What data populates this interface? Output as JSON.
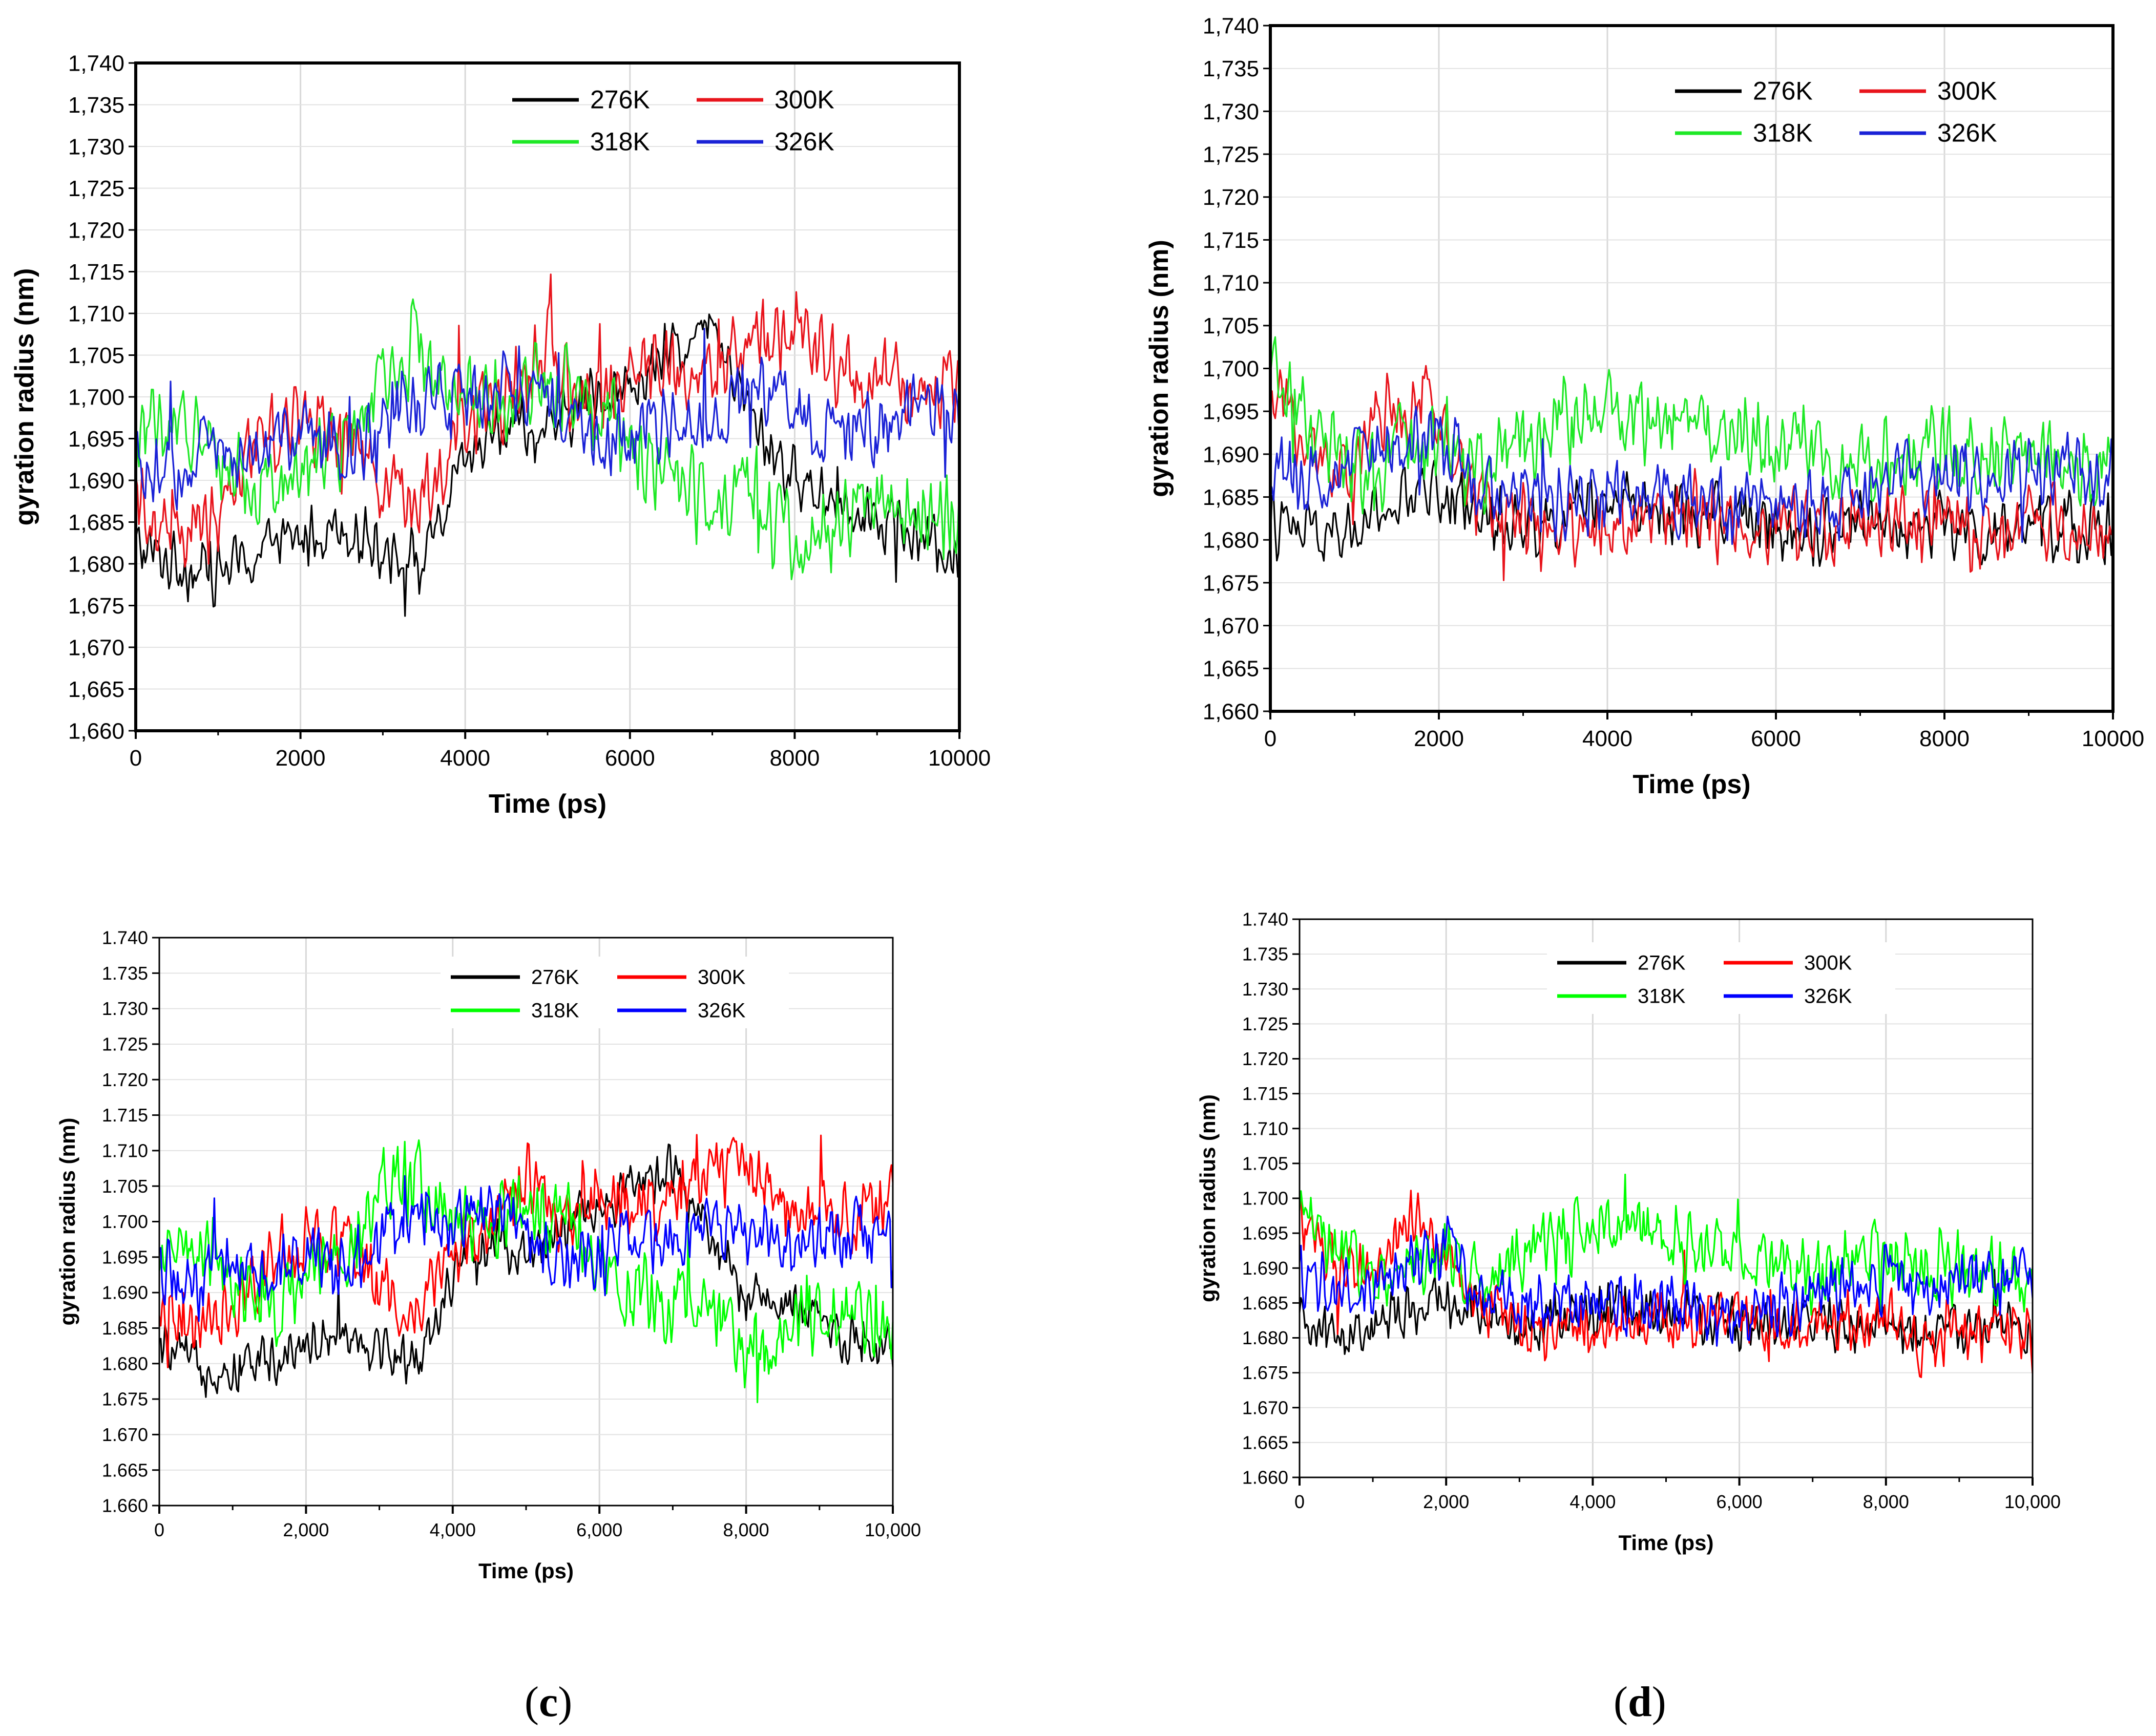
{
  "figure": {
    "panel_labels": [
      "(c)",
      "(d)"
    ],
    "label_letters": [
      "c",
      "d"
    ]
  },
  "chart_data": [
    {
      "type": "line",
      "panel": "a",
      "xlabel": "Time (ps)",
      "ylabel": "gyration radius (nm)",
      "xlim": [
        0,
        10000
      ],
      "ylim": [
        1.66,
        1.74
      ],
      "xticks": [
        "0",
        "2000",
        "4000",
        "6000",
        "8000",
        "10000"
      ],
      "xtick_values": [
        0,
        2000,
        4000,
        6000,
        8000,
        10000
      ],
      "yticks": [
        "1,660",
        "1,665",
        "1,670",
        "1,675",
        "1,680",
        "1,685",
        "1,690",
        "1,695",
        "1,700",
        "1,705",
        "1,710",
        "1,715",
        "1,720",
        "1,725",
        "1,730",
        "1,735",
        "1,740"
      ],
      "grid": true,
      "legend_position": "top-right",
      "legend": [
        {
          "name": "276K",
          "color": "#000000"
        },
        {
          "name": "300K",
          "color": "#e8141c"
        },
        {
          "name": "318K",
          "color": "#1ee826"
        },
        {
          "name": "326K",
          "color": "#1a22d6"
        }
      ],
      "series": [
        {
          "name": "276K",
          "color": "#000000",
          "x": [
            0,
            500,
            1000,
            1500,
            2000,
            2500,
            3000,
            3500,
            4000,
            4500,
            5000,
            5500,
            6000,
            6500,
            7000,
            7500,
            8000,
            8500,
            9000,
            9500,
            10000
          ],
          "y": [
            1.682,
            1.68,
            1.679,
            1.681,
            1.683,
            1.685,
            1.682,
            1.68,
            1.692,
            1.697,
            1.695,
            1.7,
            1.701,
            1.705,
            1.708,
            1.697,
            1.69,
            1.688,
            1.686,
            1.683,
            1.681
          ],
          "noise": 0.0045
        },
        {
          "name": "300K",
          "color": "#e8141c",
          "x": [
            0,
            500,
            1000,
            1500,
            2000,
            2500,
            3000,
            3500,
            4000,
            4500,
            5000,
            5500,
            6000,
            6500,
            7000,
            7500,
            8000,
            8500,
            9000,
            9500,
            10000
          ],
          "y": [
            1.688,
            1.684,
            1.686,
            1.696,
            1.697,
            1.697,
            1.69,
            1.688,
            1.696,
            1.7,
            1.706,
            1.698,
            1.704,
            1.703,
            1.702,
            1.707,
            1.708,
            1.703,
            1.702,
            1.7,
            1.703
          ],
          "noise": 0.006
        },
        {
          "name": "318K",
          "color": "#1ee826",
          "x": [
            0,
            500,
            1000,
            1500,
            2000,
            2500,
            3000,
            3500,
            4000,
            4500,
            5000,
            5500,
            6000,
            6500,
            7000,
            7500,
            8000,
            8500,
            9000,
            9500,
            10000
          ],
          "y": [
            1.696,
            1.697,
            1.692,
            1.688,
            1.692,
            1.694,
            1.704,
            1.706,
            1.7,
            1.699,
            1.702,
            1.7,
            1.694,
            1.69,
            1.688,
            1.689,
            1.682,
            1.684,
            1.688,
            1.686,
            1.686
          ],
          "noise": 0.0065
        },
        {
          "name": "326K",
          "color": "#1a22d6",
          "x": [
            0,
            500,
            1000,
            1500,
            2000,
            2500,
            3000,
            3500,
            4000,
            4500,
            5000,
            5500,
            6000,
            6500,
            7000,
            7500,
            8000,
            8500,
            9000,
            9500,
            10000
          ],
          "y": [
            1.693,
            1.69,
            1.695,
            1.693,
            1.695,
            1.693,
            1.697,
            1.7,
            1.7,
            1.702,
            1.699,
            1.694,
            1.695,
            1.698,
            1.697,
            1.7,
            1.698,
            1.696,
            1.697,
            1.699,
            1.697
          ],
          "noise": 0.0055
        }
      ]
    },
    {
      "type": "line",
      "panel": "b",
      "xlabel": "Time (ps)",
      "ylabel": "gyration radius (nm)",
      "xlim": [
        0,
        10000
      ],
      "ylim": [
        1.66,
        1.74
      ],
      "xticks": [
        "0",
        "2000",
        "4000",
        "6000",
        "8000",
        "10000"
      ],
      "xtick_values": [
        0,
        2000,
        4000,
        6000,
        8000,
        10000
      ],
      "yticks": [
        "1,660",
        "1,665",
        "1,670",
        "1,675",
        "1,680",
        "1,685",
        "1,690",
        "1,695",
        "1,700",
        "1,705",
        "1,710",
        "1,715",
        "1,720",
        "1,725",
        "1,730",
        "1,735",
        "1,740"
      ],
      "grid": true,
      "legend_position": "top-right",
      "legend": [
        {
          "name": "276K",
          "color": "#000000"
        },
        {
          "name": "300K",
          "color": "#e8141c"
        },
        {
          "name": "318K",
          "color": "#1ee826"
        },
        {
          "name": "326K",
          "color": "#1a22d6"
        }
      ],
      "series": [
        {
          "name": "276K",
          "color": "#000000",
          "x": [
            0,
            500,
            1000,
            1500,
            2000,
            2500,
            3000,
            3500,
            4000,
            4500,
            5000,
            5500,
            6000,
            6500,
            7000,
            7500,
            8000,
            8500,
            9000,
            9500,
            10000
          ],
          "y": [
            1.682,
            1.68,
            1.681,
            1.684,
            1.686,
            1.683,
            1.682,
            1.683,
            1.684,
            1.684,
            1.683,
            1.683,
            1.682,
            1.681,
            1.683,
            1.681,
            1.682,
            1.68,
            1.681,
            1.682,
            1.681
          ],
          "noise": 0.0045
        },
        {
          "name": "300K",
          "color": "#e8141c",
          "x": [
            0,
            500,
            1000,
            1500,
            2000,
            2500,
            3000,
            3500,
            4000,
            4500,
            5000,
            5500,
            6000,
            6500,
            7000,
            7500,
            8000,
            8500,
            9000,
            9500,
            10000
          ],
          "y": [
            1.697,
            1.69,
            1.688,
            1.697,
            1.694,
            1.683,
            1.682,
            1.681,
            1.682,
            1.682,
            1.683,
            1.682,
            1.682,
            1.681,
            1.682,
            1.682,
            1.683,
            1.679,
            1.682,
            1.681,
            1.68
          ],
          "noise": 0.0055
        },
        {
          "name": "318K",
          "color": "#1ee826",
          "x": [
            0,
            500,
            1000,
            1500,
            2000,
            2500,
            3000,
            3500,
            4000,
            4500,
            5000,
            5500,
            6000,
            6500,
            7000,
            7500,
            8000,
            8500,
            9000,
            9500,
            10000
          ],
          "y": [
            1.7,
            1.693,
            1.688,
            1.69,
            1.692,
            1.688,
            1.692,
            1.694,
            1.695,
            1.694,
            1.694,
            1.693,
            1.692,
            1.69,
            1.688,
            1.69,
            1.692,
            1.69,
            1.69,
            1.689,
            1.688
          ],
          "noise": 0.006
        },
        {
          "name": "326K",
          "color": "#1a22d6",
          "x": [
            0,
            500,
            1000,
            1500,
            2000,
            2500,
            3000,
            3500,
            4000,
            4500,
            5000,
            5500,
            6000,
            6500,
            7000,
            7500,
            8000,
            8500,
            9000,
            9500,
            10000
          ],
          "y": [
            1.688,
            1.687,
            1.688,
            1.69,
            1.693,
            1.686,
            1.685,
            1.685,
            1.685,
            1.685,
            1.685,
            1.684,
            1.684,
            1.685,
            1.685,
            1.688,
            1.688,
            1.687,
            1.688,
            1.688,
            1.688
          ],
          "noise": 0.0055
        }
      ]
    },
    {
      "type": "line",
      "panel": "c",
      "xlabel": "Time (ps)",
      "ylabel": "gyration radius (nm)",
      "xlim": [
        0,
        10000
      ],
      "ylim": [
        1.66,
        1.74
      ],
      "xticks": [
        "0",
        "2,000",
        "4,000",
        "6,000",
        "8,000",
        "10,000"
      ],
      "xtick_values": [
        0,
        2000,
        4000,
        6000,
        8000,
        10000
      ],
      "yticks": [
        "1.660",
        "1.665",
        "1.670",
        "1.675",
        "1.680",
        "1.685",
        "1.690",
        "1.695",
        "1.700",
        "1.705",
        "1.710",
        "1.715",
        "1.720",
        "1.725",
        "1.730",
        "1.735",
        "1.740"
      ],
      "grid": true,
      "legend_position": "top-right",
      "legend": [
        {
          "name": "276K",
          "color": "#000000"
        },
        {
          "name": "300K",
          "color": "#ff0000"
        },
        {
          "name": "318K",
          "color": "#00ff00"
        },
        {
          "name": "326K",
          "color": "#0000ff"
        }
      ],
      "series": [
        {
          "name": "276K",
          "color": "#000000",
          "x": [
            0,
            500,
            1000,
            1500,
            2000,
            2500,
            3000,
            3500,
            4000,
            4500,
            5000,
            5500,
            6000,
            6500,
            7000,
            7500,
            8000,
            8500,
            9000,
            9500,
            10000
          ],
          "y": [
            1.682,
            1.68,
            1.679,
            1.681,
            1.683,
            1.685,
            1.682,
            1.68,
            1.692,
            1.697,
            1.695,
            1.7,
            1.701,
            1.705,
            1.708,
            1.697,
            1.69,
            1.688,
            1.686,
            1.683,
            1.681
          ],
          "noise": 0.0045
        },
        {
          "name": "300K",
          "color": "#ff0000",
          "x": [
            0,
            500,
            1000,
            1500,
            2000,
            2500,
            3000,
            3500,
            4000,
            4500,
            5000,
            5500,
            6000,
            6500,
            7000,
            7500,
            8000,
            8500,
            9000,
            9500,
            10000
          ],
          "y": [
            1.688,
            1.684,
            1.686,
            1.696,
            1.697,
            1.697,
            1.69,
            1.688,
            1.696,
            1.7,
            1.706,
            1.698,
            1.704,
            1.703,
            1.702,
            1.707,
            1.708,
            1.703,
            1.702,
            1.7,
            1.703
          ],
          "noise": 0.006
        },
        {
          "name": "318K",
          "color": "#00ff00",
          "x": [
            0,
            500,
            1000,
            1500,
            2000,
            2500,
            3000,
            3500,
            4000,
            4500,
            5000,
            5500,
            6000,
            6500,
            7000,
            7500,
            8000,
            8500,
            9000,
            9500,
            10000
          ],
          "y": [
            1.696,
            1.697,
            1.692,
            1.688,
            1.692,
            1.694,
            1.704,
            1.706,
            1.7,
            1.699,
            1.702,
            1.7,
            1.694,
            1.69,
            1.688,
            1.689,
            1.682,
            1.684,
            1.688,
            1.686,
            1.686
          ],
          "noise": 0.0065
        },
        {
          "name": "326K",
          "color": "#0000ff",
          "x": [
            0,
            500,
            1000,
            1500,
            2000,
            2500,
            3000,
            3500,
            4000,
            4500,
            5000,
            5500,
            6000,
            6500,
            7000,
            7500,
            8000,
            8500,
            9000,
            9500,
            10000
          ],
          "y": [
            1.693,
            1.69,
            1.695,
            1.693,
            1.695,
            1.693,
            1.697,
            1.7,
            1.7,
            1.702,
            1.699,
            1.694,
            1.695,
            1.698,
            1.697,
            1.7,
            1.698,
            1.696,
            1.697,
            1.699,
            1.697
          ],
          "noise": 0.0055
        }
      ]
    },
    {
      "type": "line",
      "panel": "d",
      "xlabel": "Time (ps)",
      "ylabel": "gyration radius (nm)",
      "xlim": [
        0,
        10000
      ],
      "ylim": [
        1.66,
        1.74
      ],
      "xticks": [
        "0",
        "2,000",
        "4,000",
        "6,000",
        "8,000",
        "10,000"
      ],
      "xtick_values": [
        0,
        2000,
        4000,
        6000,
        8000,
        10000
      ],
      "yticks": [
        "1.660",
        "1.665",
        "1.670",
        "1.675",
        "1.680",
        "1.685",
        "1.690",
        "1.695",
        "1.700",
        "1.705",
        "1.710",
        "1.715",
        "1.720",
        "1.725",
        "1.730",
        "1.735",
        "1.740"
      ],
      "grid": true,
      "legend_position": "top-center",
      "legend": [
        {
          "name": "276K",
          "color": "#000000"
        },
        {
          "name": "300K",
          "color": "#ff0000"
        },
        {
          "name": "318K",
          "color": "#00ff00"
        },
        {
          "name": "326K",
          "color": "#0000ff"
        }
      ],
      "series": [
        {
          "name": "276K",
          "color": "#000000",
          "x": [
            0,
            500,
            1000,
            1500,
            2000,
            2500,
            3000,
            3500,
            4000,
            4500,
            5000,
            5500,
            6000,
            6500,
            7000,
            7500,
            8000,
            8500,
            9000,
            9500,
            10000
          ],
          "y": [
            1.682,
            1.68,
            1.681,
            1.684,
            1.686,
            1.683,
            1.682,
            1.683,
            1.684,
            1.684,
            1.683,
            1.683,
            1.682,
            1.681,
            1.683,
            1.681,
            1.682,
            1.68,
            1.681,
            1.682,
            1.681
          ],
          "noise": 0.0045
        },
        {
          "name": "300K",
          "color": "#ff0000",
          "x": [
            0,
            500,
            1000,
            1500,
            2000,
            2500,
            3000,
            3500,
            4000,
            4500,
            5000,
            5500,
            6000,
            6500,
            7000,
            7500,
            8000,
            8500,
            9000,
            9500,
            10000
          ],
          "y": [
            1.697,
            1.69,
            1.688,
            1.697,
            1.694,
            1.683,
            1.682,
            1.681,
            1.682,
            1.682,
            1.683,
            1.682,
            1.682,
            1.681,
            1.682,
            1.682,
            1.683,
            1.679,
            1.682,
            1.681,
            1.68
          ],
          "noise": 0.0055
        },
        {
          "name": "318K",
          "color": "#00ff00",
          "x": [
            0,
            500,
            1000,
            1500,
            2000,
            2500,
            3000,
            3500,
            4000,
            4500,
            5000,
            5500,
            6000,
            6500,
            7000,
            7500,
            8000,
            8500,
            9000,
            9500,
            10000
          ],
          "y": [
            1.7,
            1.693,
            1.688,
            1.69,
            1.692,
            1.688,
            1.692,
            1.694,
            1.695,
            1.694,
            1.694,
            1.693,
            1.692,
            1.69,
            1.688,
            1.69,
            1.692,
            1.69,
            1.69,
            1.689,
            1.688
          ],
          "noise": 0.006
        },
        {
          "name": "326K",
          "color": "#0000ff",
          "x": [
            0,
            500,
            1000,
            1500,
            2000,
            2500,
            3000,
            3500,
            4000,
            4500,
            5000,
            5500,
            6000,
            6500,
            7000,
            7500,
            8000,
            8500,
            9000,
            9500,
            10000
          ],
          "y": [
            1.688,
            1.687,
            1.688,
            1.69,
            1.693,
            1.686,
            1.685,
            1.685,
            1.685,
            1.685,
            1.685,
            1.684,
            1.684,
            1.685,
            1.685,
            1.688,
            1.688,
            1.687,
            1.688,
            1.688,
            1.688
          ],
          "noise": 0.0055
        }
      ]
    }
  ]
}
